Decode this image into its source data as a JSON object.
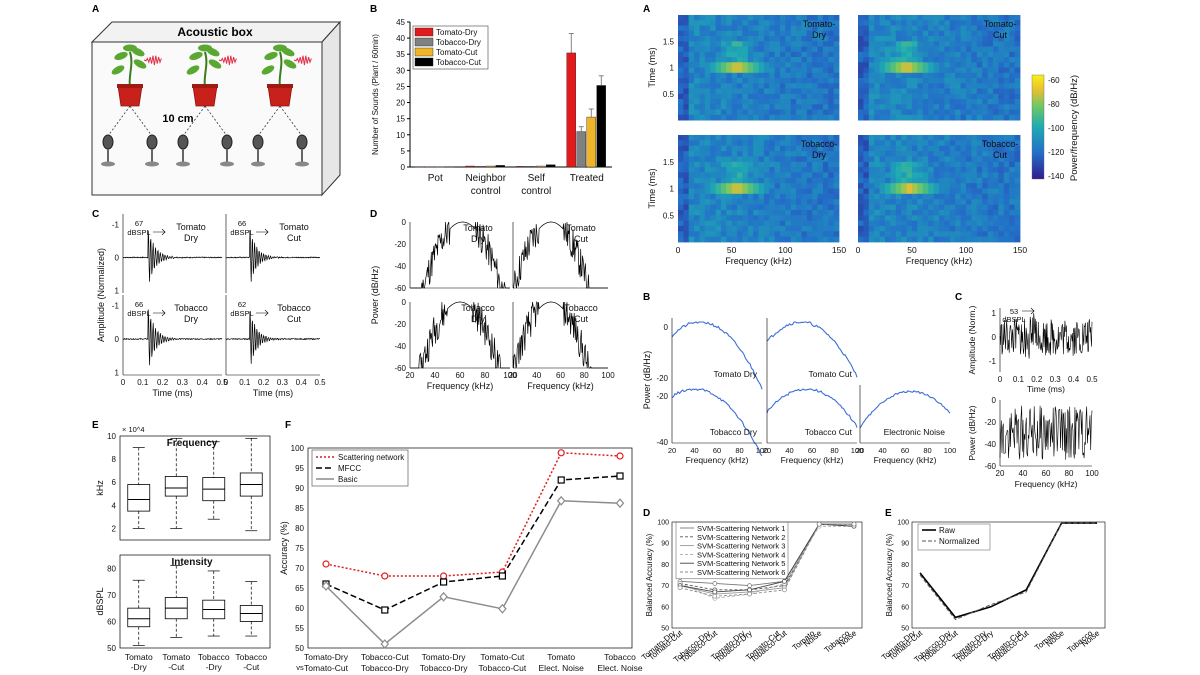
{
  "panel_letters": {
    "left_a": "A",
    "left_b": "B",
    "left_c": "C",
    "left_d": "D",
    "left_e": "E",
    "left_f": "F",
    "right_a": "A",
    "right_b": "B",
    "right_c": "C",
    "right_d": "D",
    "right_e": "E"
  },
  "acoustic_box": {
    "title": "Acoustic box",
    "distance_label": "10 cm"
  },
  "colors": {
    "tomato_dry": "#e31a1c",
    "tobacco_dry": "#808080",
    "tomato_cut": "#f0b429",
    "tobacco_cut": "#000000",
    "scatter": "#e31a1c",
    "mfcc": "#000000",
    "basic": "#8c8c8c",
    "spectrum": "#3b6fd8"
  },
  "chart_data": [
    {
      "id": "sound_counts",
      "type": "bar",
      "ylabel": "Number of Sounds (Plant / 60min)",
      "ylim": [
        0,
        45
      ],
      "yticks": [
        0,
        5,
        10,
        15,
        20,
        25,
        30,
        35,
        40,
        45
      ],
      "categories": [
        "Pot",
        "Neighbor control",
        "Self control",
        "Treated"
      ],
      "category_labels": [
        [
          "Pot"
        ],
        [
          "Neighbor",
          "control"
        ],
        [
          "Self",
          "control"
        ],
        [
          "Treated"
        ]
      ],
      "series": [
        {
          "name": "Tomato-Dry",
          "values": [
            0.1,
            0.3,
            0.2,
            35.4
          ],
          "errors": [
            0.1,
            0.1,
            0.1,
            6
          ]
        },
        {
          "name": "Tobacco-Dry",
          "values": [
            0.1,
            0.2,
            0.2,
            11
          ],
          "errors": [
            0.1,
            0.1,
            0.1,
            1.5
          ]
        },
        {
          "name": "Tomato-Cut",
          "values": [
            0.1,
            0.3,
            0.3,
            15.5
          ],
          "errors": [
            0.1,
            0.1,
            0.1,
            2.5
          ]
        },
        {
          "name": "Tobacco-Cut",
          "values": [
            0.1,
            0.5,
            0.7,
            25.3
          ],
          "errors": [
            0.1,
            0.2,
            0.2,
            3
          ]
        }
      ]
    },
    {
      "id": "waveforms",
      "type": "line",
      "ylabel": "Amplitude (Normalized)",
      "xlabel": "Time (ms)",
      "xticks": [
        "0",
        "0.1",
        "0.2",
        "0.3",
        "0.4",
        "0.5"
      ],
      "yticks": [
        "-1",
        "0",
        "1"
      ],
      "panels": [
        {
          "name": "Tomato Dry",
          "label": [
            "Tomato",
            "Dry"
          ],
          "level": "67",
          "unit": "dBSPL"
        },
        {
          "name": "Tomato Cut",
          "label": [
            "Tomato",
            "Cut"
          ],
          "level": "66",
          "unit": "dBSPL"
        },
        {
          "name": "Tobacco Dry",
          "label": [
            "Tobacco",
            "Dry"
          ],
          "level": "66",
          "unit": "dBSPL"
        },
        {
          "name": "Tobacco Cut",
          "label": [
            "Tobacco",
            "Cut"
          ],
          "level": "62",
          "unit": "dBSPL"
        }
      ]
    },
    {
      "id": "power_spectra",
      "type": "line",
      "ylabel": "Power (dB/Hz)",
      "xlabel": "Frequency (kHz)",
      "xticks": [
        "20",
        "40",
        "60",
        "80",
        "100"
      ],
      "yticks": [
        "0",
        "-20",
        "-40",
        "-60"
      ],
      "panels": [
        {
          "name": "Tomato Dry",
          "label": [
            "Tomato",
            "Dry"
          ]
        },
        {
          "name": "Tomato Cut",
          "label": [
            "Tomato",
            "Cut"
          ]
        },
        {
          "name": "Tobacco Dry",
          "label": [
            "Tobacco",
            "Dry"
          ]
        },
        {
          "name": "Tobacco Cut",
          "label": [
            "Tobacco",
            "Cut"
          ]
        }
      ]
    },
    {
      "id": "boxplots",
      "type": "box",
      "top": {
        "title": "Frequency",
        "ylabel": "kHz",
        "multiplier": "× 10^4",
        "ylim": [
          1,
          10
        ],
        "yticks": [
          "2",
          "4",
          "6",
          "8",
          "10"
        ],
        "boxes": [
          {
            "name": "Tomato-Dry",
            "min": 2,
            "q1": 3.5,
            "median": 4.5,
            "q3": 5.8,
            "max": 9
          },
          {
            "name": "Tomato-Cut",
            "min": 2,
            "q1": 4.8,
            "median": 5.5,
            "q3": 6.5,
            "max": 9.8
          },
          {
            "name": "Tobacco-Dry",
            "min": 2.8,
            "q1": 4.4,
            "median": 5.4,
            "q3": 6.4,
            "max": 9.5
          },
          {
            "name": "Tobacco-Cut",
            "min": 1.8,
            "q1": 4.8,
            "median": 5.8,
            "q3": 6.8,
            "max": 9.8
          }
        ]
      },
      "bottom": {
        "title": "Intensity",
        "ylabel": "dBSPL",
        "ylim": [
          50,
          85
        ],
        "yticks": [
          "50",
          "60",
          "70",
          "80"
        ],
        "boxes": [
          {
            "name": "Tomato-Dry",
            "min": 51,
            "q1": 58,
            "median": 61,
            "q3": 65,
            "max": 75.5
          },
          {
            "name": "Tomato-Cut",
            "min": 54,
            "q1": 61,
            "median": 65,
            "q3": 69,
            "max": 81
          },
          {
            "name": "Tobacco-Dry",
            "min": 54.5,
            "q1": 61,
            "median": 64.5,
            "q3": 68,
            "max": 79
          },
          {
            "name": "Tobacco-Cut",
            "min": 54.5,
            "q1": 60,
            "median": 63,
            "q3": 66,
            "max": 75
          }
        ]
      },
      "categories": [
        [
          "Tomato",
          "-Dry"
        ],
        [
          "Tomato",
          "-Cut"
        ],
        [
          "Tobacco",
          "-Dry"
        ],
        [
          "Tobacco",
          "-Cut"
        ]
      ]
    },
    {
      "id": "accuracy",
      "type": "line",
      "ylabel": "Accuracy (%)",
      "ylim": [
        50,
        100
      ],
      "yticks": [
        "50",
        "55",
        "60",
        "65",
        "70",
        "75",
        "80",
        "85",
        "90",
        "95",
        "100"
      ],
      "vs_label": "vs",
      "categories": [
        [
          "Tomato-Dry",
          "Tomato-Cut"
        ],
        [
          "Tobacco-Cut",
          "Tobacco-Dry"
        ],
        [
          "Tomato-Dry",
          "Tobacco-Dry"
        ],
        [
          "Tomato-Cut",
          "Tobacco-Cut"
        ],
        [
          "Tomato",
          "Elect. Noise"
        ],
        [
          "Tobacco",
          "Elect. Noise"
        ]
      ],
      "series": [
        {
          "name": "Scattering network",
          "values": [
            71,
            68,
            68,
            69,
            98.8,
            98
          ]
        },
        {
          "name": "MFCC",
          "values": [
            66,
            59.5,
            66.5,
            68,
            92,
            93
          ]
        },
        {
          "name": "Basic",
          "values": [
            65.5,
            51,
            62.8,
            59.8,
            86.8,
            86.2
          ]
        }
      ]
    },
    {
      "id": "spectrograms",
      "type": "heatmap",
      "ylabel": "Time (ms)",
      "xlabel": "Frequency (kHz)",
      "xticks": [
        "0",
        "50",
        "100",
        "150"
      ],
      "yticks": [
        "0.5",
        "1",
        "1.5"
      ],
      "colorbar_label": "Power/frequency (dB/Hz)",
      "colorbar_ticks": [
        "-60",
        "-80",
        "-100",
        "-120",
        "-140"
      ],
      "panels": [
        {
          "name": "Tomato-Dry",
          "label": [
            "Tomato-",
            "Dry"
          ],
          "peak_khz": 55,
          "time_ms": 1.0
        },
        {
          "name": "Tomato-Cut",
          "label": [
            "Tomato-",
            "Cut"
          ],
          "peak_khz": 45,
          "time_ms": 1.0
        },
        {
          "name": "Tobacco-Dry",
          "label": [
            "Tobacco-",
            "Dry"
          ],
          "peak_khz": 55,
          "time_ms": 1.0
        },
        {
          "name": "Tobacco-Cut",
          "label": [
            "Tobacco-",
            "Cut"
          ],
          "peak_khz": 48,
          "time_ms": 1.0
        }
      ]
    },
    {
      "id": "mean_spectra",
      "type": "line",
      "ylabel": "Power (dB/Hz)",
      "xlabel": "Frequency (kHz)",
      "xticks": [
        "20",
        "40",
        "60",
        "80",
        "100"
      ],
      "yticks": [
        "0",
        "-20",
        "-40"
      ],
      "panels": [
        {
          "name": "Tomato Dry",
          "peak_khz": 45
        },
        {
          "name": "Tomato Cut",
          "peak_khz": 50
        },
        {
          "name": "Tobacco Dry",
          "peak_khz": 40
        },
        {
          "name": "Tobacco Cut",
          "peak_khz": 55
        },
        {
          "name": "Electronic Noise",
          "peak_khz": 65
        }
      ]
    },
    {
      "id": "noise_sample",
      "type": "line",
      "wave": {
        "ylabel": "Amplitude (Norm.)",
        "xlabel": "Time (ms)",
        "xticks": [
          "0",
          "0.1",
          "0.2",
          "0.3",
          "0.4",
          "0.5"
        ],
        "yticks": [
          "-1",
          "0",
          "1"
        ],
        "level": "53",
        "unit": "dBSPL"
      },
      "spectrum": {
        "ylabel": "Power (dB/Hz)",
        "xlabel": "Frequency (kHz)",
        "xticks": [
          "20",
          "40",
          "60",
          "80",
          "100"
        ],
        "yticks": [
          "0",
          "-20",
          "-40",
          "-60"
        ]
      }
    },
    {
      "id": "svm_accuracy",
      "type": "line",
      "ylabel": "Balanced Accuracy (%)",
      "ylim": [
        50,
        100
      ],
      "yticks": [
        "50",
        "60",
        "70",
        "80",
        "90",
        "100"
      ],
      "categories": [
        [
          "Tomato-Dry",
          "Tomato-Cut"
        ],
        [
          "Tobacco-Dry",
          "Tobacco-Cut"
        ],
        [
          "Tomato-Dry",
          "Tobacco-Dry"
        ],
        [
          "Tomato-Cut",
          "Tobacco-Cut"
        ],
        [
          "Tomato",
          "Noise"
        ],
        [
          "Tobacco",
          "Noise"
        ]
      ],
      "series": [
        {
          "name": "SVM-Scattering Network 1",
          "values": [
            72,
            71,
            70,
            72,
            99,
            99
          ]
        },
        {
          "name": "SVM-Scattering Network 2",
          "values": [
            71,
            68,
            68,
            70,
            99,
            99
          ]
        },
        {
          "name": "SVM-Scattering Network 3",
          "values": [
            70,
            66,
            67,
            69,
            99,
            99
          ]
        },
        {
          "name": "SVM-Scattering Network 4",
          "values": [
            71,
            64,
            66,
            71,
            98,
            98
          ]
        },
        {
          "name": "SVM-Scattering Network 5",
          "values": [
            70,
            67,
            68,
            72,
            99,
            98
          ]
        },
        {
          "name": "SVM-Scattering Network 6",
          "values": [
            69,
            65,
            66,
            68,
            99,
            99
          ]
        }
      ]
    },
    {
      "id": "raw_vs_norm",
      "type": "line",
      "ylabel": "Balanced Accuracy (%)",
      "ylim": [
        50,
        100
      ],
      "yticks": [
        "50",
        "60",
        "70",
        "80",
        "90",
        "100"
      ],
      "categories": [
        [
          "Tomato-Dry",
          "Tomato-Cut"
        ],
        [
          "Tobacco-Dry",
          "Tobacco-Cut"
        ],
        [
          "Tomato-Dry",
          "Tobacco-Dry"
        ],
        [
          "Tomato-Cut",
          "Tobacco-Cut"
        ],
        [
          "Tomato",
          "Noise"
        ],
        [
          "Tobacco",
          "Noise"
        ]
      ],
      "series": [
        {
          "name": "Raw",
          "values": [
            76,
            55,
            60,
            68,
            99.5,
            99.5
          ]
        },
        {
          "name": "Normalized",
          "values": [
            75,
            54,
            61,
            67,
            99.5,
            99.5
          ]
        }
      ]
    }
  ]
}
